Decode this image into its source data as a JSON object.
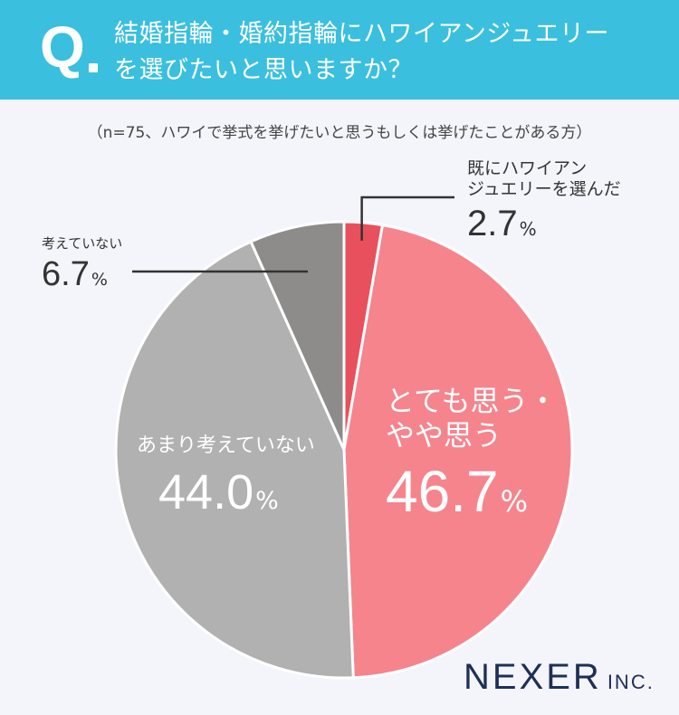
{
  "question": {
    "mark": "Q",
    "line1": "結婚指輪・婚約指輪にハワイアンジュエリー",
    "line2": "を選びたいと思いますか？"
  },
  "note": "（n=75、ハワイで挙式を挙げたいと思うもしくは挙げたことがある方）",
  "chart_data": {
    "type": "pie",
    "title": "結婚指輪・婚約指輪にハワイアンジュエリーを選びたいと思いますか？",
    "unit": "%",
    "slices": [
      {
        "label_lines": [
          "既にハワイアン",
          "ジュエリーを選んだ"
        ],
        "value": 2.7,
        "value_text": "2.7",
        "color": "#e8505e"
      },
      {
        "label_lines": [
          "とても思う・",
          "やや思う"
        ],
        "value": 46.7,
        "value_text": "46.7",
        "color": "#f5848d"
      },
      {
        "label_lines": [
          "あまり考えていない"
        ],
        "value": 44.0,
        "value_text": "44.0",
        "color": "#b1b1b1"
      },
      {
        "label_lines": [
          "考えていない"
        ],
        "value": 6.7,
        "value_text": "6.7",
        "color": "#8e8c8b"
      }
    ]
  },
  "logo": {
    "name": "NEXER",
    "suffix": "INC."
  },
  "colors": {
    "header": "#3bbfde",
    "background": "#f3f5fb",
    "logo": "#1f2f55"
  }
}
